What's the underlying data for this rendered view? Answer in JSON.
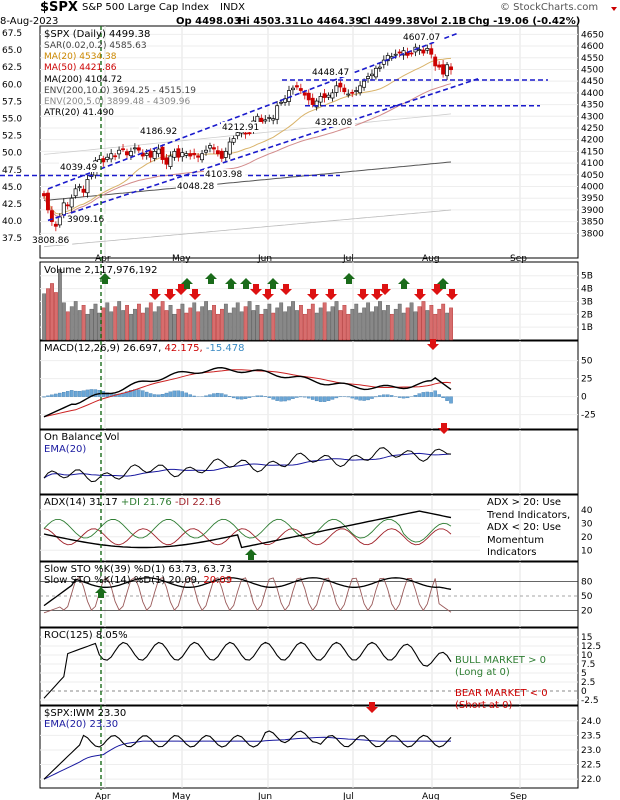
{
  "header": {
    "symbol": "$SPX",
    "name": "S&P 500 Large Cap Index",
    "exchange": "INDX",
    "date": "8-Aug-2023",
    "open": "Op 4498.03",
    "high": "Hi 4503.31",
    "low": "Lo 4464.39",
    "close": "Cl 4499.38",
    "volume": "Vol 2.1B",
    "change": "Chg -19.06 (-0.42%)",
    "watermark": "© StockCharts.com"
  },
  "price_panel": {
    "title": "$SPX (Daily) 4499.38",
    "legend": [
      {
        "text": "SAR(0.02,0.2) 4585.63",
        "color": "#444444"
      },
      {
        "text": "MA(20) 4534.38",
        "color": "#cc8800"
      },
      {
        "text": "MA(50) 4421.86",
        "color": "#cc0000"
      },
      {
        "text": "MA(200) 4104.72",
        "color": "#000000"
      },
      {
        "text": "ENV(200,10.0) 3694.25 - 4515.19",
        "color": "#444444"
      },
      {
        "text": "ENV(200,5.0) 3899.48 - 4309.96",
        "color": "#888888"
      },
      {
        "text": "ATR(20) 41.490",
        "color": "#000000"
      }
    ],
    "annotations": [
      "3808.86",
      "3909.16",
      "4039.49",
      "4186.92",
      "4048.28",
      "4212.91",
      "4103.98",
      "4448.47",
      "4328.08",
      "4607.07"
    ],
    "left_axis": [
      "67.5",
      "65.0",
      "62.5",
      "60.0",
      "57.5",
      "55.0",
      "52.5",
      "50.0",
      "47.5",
      "45.0",
      "42.5",
      "40.0",
      "37.5"
    ],
    "right_axis": [
      "4650",
      "4600",
      "4550",
      "4500",
      "4450",
      "4400",
      "4350",
      "4300",
      "4250",
      "4200",
      "4150",
      "4100",
      "4050",
      "4000",
      "3950",
      "3900",
      "3850",
      "3800"
    ],
    "x_axis": [
      "Apr",
      "May",
      "Jun",
      "Jul",
      "Aug",
      "Sep"
    ]
  },
  "volume_panel": {
    "title": "Volume 2,117,976,192",
    "right_axis": [
      "5B",
      "4B",
      "3B",
      "2B",
      "1B"
    ]
  },
  "macd_panel": {
    "title": "MACD(12,26,9)",
    "macd": "26.697,",
    "signal": "42.175,",
    "hist": "-15.478",
    "right_axis": [
      "50",
      "25",
      "0",
      "-25"
    ]
  },
  "obv_panel": {
    "title": "On Balance Vol",
    "ema": "EMA(20)"
  },
  "adx_panel": {
    "title": "ADX(14) 31.17",
    "plus_di": "+DI 21.76",
    "minus_di": "-DI 22.16",
    "note": [
      "ADX > 20: Use",
      "Trend Indicators,",
      "ADX < 20: Use",
      "Momentum",
      "Indicators"
    ],
    "right_axis": [
      "40",
      "30",
      "20",
      "10"
    ]
  },
  "sto_panel": {
    "line1": "Slow STO %K(39) %D(1) 63.73, 63.73",
    "line2_a": "Slow STO %K(14) %D(1) 20.09,",
    "line2_b": "20.09",
    "right_axis": [
      "80",
      "50",
      "20"
    ]
  },
  "roc_panel": {
    "title": "ROC(125) 8.05%",
    "bull": [
      "BULL MARKET > 0",
      "(Long at 0)"
    ],
    "bear": [
      "BEAR MARKET < 0",
      "(Short at 0)"
    ],
    "right_axis": [
      "15",
      "12.5",
      "10",
      "7.5",
      "5",
      "2.5",
      "0",
      "-2.5"
    ]
  },
  "ratio_panel": {
    "title": "$SPX:IWM 23.30",
    "ema": "EMA(20) 23.30",
    "right_axis": [
      "24.0",
      "23.5",
      "23.0",
      "22.5",
      "22.0"
    ]
  },
  "chart_data": {
    "type": "candlestick",
    "title": "$SPX (Daily) 4499.38",
    "x_labels": [
      "Apr",
      "May",
      "Jun",
      "Jul",
      "Aug",
      "Sep"
    ],
    "ylim": [
      3780,
      4660
    ],
    "price_points": [
      {
        "d": 1,
        "v": 3960
      },
      {
        "d": 2,
        "v": 3900
      },
      {
        "d": 3,
        "v": 3850
      },
      {
        "d": 4,
        "v": 3830
      },
      {
        "d": 5,
        "v": 3870
      },
      {
        "d": 6,
        "v": 3930
      },
      {
        "d": 7,
        "v": 3920
      },
      {
        "d": 8,
        "v": 3950
      },
      {
        "d": 9,
        "v": 3990
      },
      {
        "d": 10,
        "v": 4000
      },
      {
        "d": 11,
        "v": 3975
      },
      {
        "d": 12,
        "v": 4030
      },
      {
        "d": 13,
        "v": 4050
      },
      {
        "d": 14,
        "v": 4110
      },
      {
        "d": 15,
        "v": 4115
      },
      {
        "d": 16,
        "v": 4105
      },
      {
        "d": 17,
        "v": 4125
      },
      {
        "d": 18,
        "v": 4140
      },
      {
        "d": 19,
        "v": 4130
      },
      {
        "d": 20,
        "v": 4155
      },
      {
        "d": 21,
        "v": 4160
      },
      {
        "d": 22,
        "v": 4135
      },
      {
        "d": 23,
        "v": 4150
      },
      {
        "d": 24,
        "v": 4165
      },
      {
        "d": 25,
        "v": 4155
      },
      {
        "d": 26,
        "v": 4130
      },
      {
        "d": 27,
        "v": 4140
      },
      {
        "d": 28,
        "v": 4125
      },
      {
        "d": 29,
        "v": 4150
      },
      {
        "d": 30,
        "v": 4160
      },
      {
        "d": 31,
        "v": 4115
      },
      {
        "d": 32,
        "v": 4095
      },
      {
        "d": 33,
        "v": 4130
      },
      {
        "d": 34,
        "v": 4150
      },
      {
        "d": 35,
        "v": 4125
      },
      {
        "d": 36,
        "v": 4145
      },
      {
        "d": 37,
        "v": 4140
      },
      {
        "d": 38,
        "v": 4130
      },
      {
        "d": 39,
        "v": 4135
      },
      {
        "d": 40,
        "v": 4125
      },
      {
        "d": 41,
        "v": 4140
      },
      {
        "d": 42,
        "v": 4155
      },
      {
        "d": 43,
        "v": 4175
      },
      {
        "d": 44,
        "v": 4160
      },
      {
        "d": 45,
        "v": 4140
      },
      {
        "d": 46,
        "v": 4120
      },
      {
        "d": 47,
        "v": 4150
      },
      {
        "d": 48,
        "v": 4190
      },
      {
        "d": 49,
        "v": 4205
      },
      {
        "d": 50,
        "v": 4230
      },
      {
        "d": 51,
        "v": 4240
      },
      {
        "d": 52,
        "v": 4225
      },
      {
        "d": 53,
        "v": 4230
      },
      {
        "d": 54,
        "v": 4280
      },
      {
        "d": 55,
        "v": 4300
      },
      {
        "d": 56,
        "v": 4270
      },
      {
        "d": 57,
        "v": 4285
      },
      {
        "d": 58,
        "v": 4295
      },
      {
        "d": 59,
        "v": 4290
      },
      {
        "d": 60,
        "v": 4345
      },
      {
        "d": 61,
        "v": 4360
      },
      {
        "d": 62,
        "v": 4375
      },
      {
        "d": 63,
        "v": 4410
      },
      {
        "d": 64,
        "v": 4420
      },
      {
        "d": 65,
        "v": 4425
      },
      {
        "d": 66,
        "v": 4410
      },
      {
        "d": 67,
        "v": 4390
      },
      {
        "d": 68,
        "v": 4370
      },
      {
        "d": 69,
        "v": 4350
      },
      {
        "d": 70,
        "v": 4365
      },
      {
        "d": 71,
        "v": 4385
      },
      {
        "d": 72,
        "v": 4380
      },
      {
        "d": 73,
        "v": 4390
      },
      {
        "d": 74,
        "v": 4400
      },
      {
        "d": 75,
        "v": 4430
      },
      {
        "d": 76,
        "v": 4425
      },
      {
        "d": 77,
        "v": 4405
      },
      {
        "d": 78,
        "v": 4395
      },
      {
        "d": 79,
        "v": 4400
      },
      {
        "d": 80,
        "v": 4410
      },
      {
        "d": 81,
        "v": 4430
      },
      {
        "d": 82,
        "v": 4450
      },
      {
        "d": 83,
        "v": 4470
      },
      {
        "d": 84,
        "v": 4480
      },
      {
        "d": 85,
        "v": 4505
      },
      {
        "d": 86,
        "v": 4510
      },
      {
        "d": 87,
        "v": 4540
      },
      {
        "d": 88,
        "v": 4560
      },
      {
        "d": 89,
        "v": 4555
      },
      {
        "d": 90,
        "v": 4565
      },
      {
        "d": 91,
        "v": 4570
      },
      {
        "d": 92,
        "v": 4580
      },
      {
        "d": 93,
        "v": 4560
      },
      {
        "d": 94,
        "v": 4570
      },
      {
        "d": 95,
        "v": 4595
      },
      {
        "d": 96,
        "v": 4585
      },
      {
        "d": 97,
        "v": 4570
      },
      {
        "d": 98,
        "v": 4590
      },
      {
        "d": 99,
        "v": 4565
      },
      {
        "d": 100,
        "v": 4515
      },
      {
        "d": 101,
        "v": 4510
      },
      {
        "d": 102,
        "v": 4480
      },
      {
        "d": 103,
        "v": 4520
      },
      {
        "d": 104,
        "v": 4499
      }
    ]
  }
}
